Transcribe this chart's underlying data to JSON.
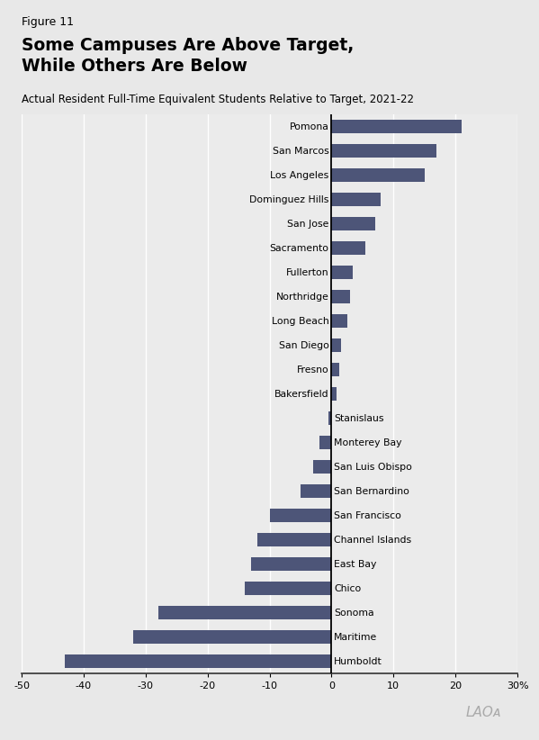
{
  "figure_label": "Figure 11",
  "title": "Some Campuses Are Above Target,\nWhile Others Are Below",
  "subtitle": "Actual Resident Full-Time Equivalent Students Relative to Target, 2021-22",
  "bar_color": "#4d5578",
  "background_color": "#e8e8e8",
  "plot_bg_color": "#ebebeb",
  "categories": [
    "Pomona",
    "San Marcos",
    "Los Angeles",
    "Dominguez Hills",
    "San Jose",
    "Sacramento",
    "Fullerton",
    "Northridge",
    "Long Beach",
    "San Diego",
    "Fresno",
    "Bakersfield",
    "Stanislaus",
    "Monterey Bay",
    "San Luis Obispo",
    "San Bernardino",
    "San Francisco",
    "Channel Islands",
    "East Bay",
    "Chico",
    "Sonoma",
    "Maritime",
    "Humboldt"
  ],
  "values": [
    21,
    17,
    15,
    8,
    7,
    5.5,
    3.5,
    3,
    2.5,
    1.5,
    1.2,
    0.8,
    -0.5,
    -2,
    -3,
    -5,
    -10,
    -12,
    -13,
    -14,
    -28,
    -32,
    -43
  ],
  "xlim": [
    -50,
    30
  ],
  "xticks": [
    -50,
    -40,
    -30,
    -20,
    -10,
    0,
    10,
    20,
    30
  ],
  "xticklabels": [
    "-50",
    "-40",
    "-30",
    "-20",
    "-10",
    "0",
    "10",
    "20",
    "30%"
  ],
  "watermark": "LAOᴀ",
  "sep_color": "#999999",
  "grid_color": "#ffffff",
  "spine_bottom_color": "#333333"
}
